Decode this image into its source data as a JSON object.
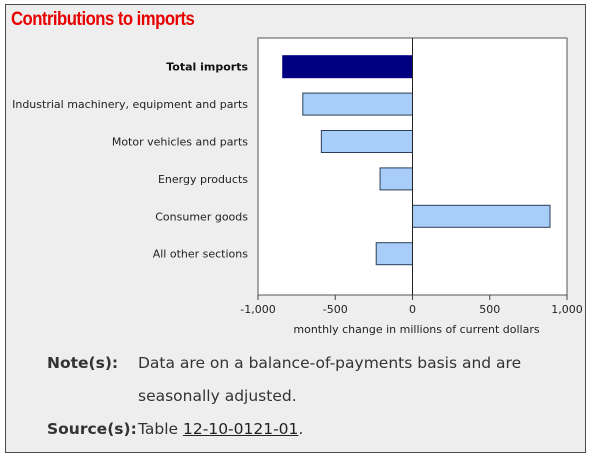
{
  "title": "Contributions to imports",
  "chart_data": {
    "type": "bar",
    "orientation": "horizontal",
    "categories": [
      "Total imports",
      "Industrial machinery, equipment and parts",
      "Motor vehicles and parts",
      "Energy products",
      "Consumer goods",
      "All other sections"
    ],
    "values": [
      -840,
      -710,
      -590,
      -210,
      890,
      -235
    ],
    "highlight_category": "Total imports",
    "colors": {
      "highlight": "#000080",
      "bar": "#a8cdf8",
      "bar_stroke": "#2a3f5a"
    },
    "xlim": [
      -1000,
      1000
    ],
    "xticks": [
      "-1,000",
      "-500",
      "0",
      "500",
      "1,000"
    ],
    "xtick_values": [
      -1000,
      -500,
      0,
      500,
      1000
    ],
    "xlabel": "monthly change in millions of current dollars",
    "grid": false,
    "legend": "none"
  },
  "notes": {
    "note_label": "Note(s):",
    "note_line1": "Data are on a balance-of-payments basis and are",
    "note_line2": "seasonally adjusted.",
    "source_label": "Source(s):",
    "source_prefix": "Table ",
    "source_link": "12-10-0121-01",
    "source_suffix": "."
  }
}
